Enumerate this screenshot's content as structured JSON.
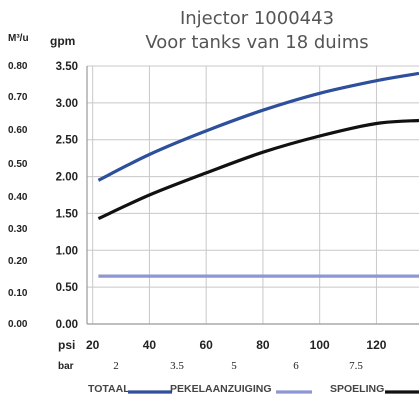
{
  "chart_data": {
    "type": "line",
    "title": "Injector 1000443",
    "subtitle": "Voor tanks van 18 duims",
    "y_unit_left": "M³/u",
    "y_unit": "gpm",
    "x_unit": "psi",
    "x2_unit": "bar",
    "x": [
      20,
      40,
      60,
      80,
      100,
      120,
      135
    ],
    "xlim": [
      18,
      135
    ],
    "ylim": [
      0,
      3.5
    ],
    "xticks": [
      "20",
      "40",
      "60",
      "80",
      "100",
      "120"
    ],
    "x2ticks": [
      "2",
      "3.5",
      "5",
      "6",
      "7.5"
    ],
    "yticks": [
      "0.00",
      "0.50",
      "1.00",
      "1.50",
      "2.00",
      "2.50",
      "3.00",
      "3.50"
    ],
    "y2ticks": [
      "0.00",
      "0.10",
      "0.20",
      "0.30",
      "0.40",
      "0.50",
      "0.60",
      "0.70",
      "0.80"
    ],
    "grid": true,
    "legend_position": "bottom",
    "series": [
      {
        "name": "TOTAAL",
        "color": "#2d4f9c",
        "x": [
          22,
          40,
          60,
          80,
          100,
          120,
          135
        ],
        "values": [
          1.95,
          2.3,
          2.62,
          2.9,
          3.13,
          3.3,
          3.4
        ]
      },
      {
        "name": "PEKELAANZUIGING",
        "color": "#8e97d4",
        "x": [
          22,
          135
        ],
        "values": [
          0.65,
          0.65
        ]
      },
      {
        "name": "SPOELING",
        "color": "#111111",
        "x": [
          22,
          40,
          60,
          80,
          100,
          120,
          135
        ],
        "values": [
          1.43,
          1.75,
          2.05,
          2.33,
          2.55,
          2.72,
          2.76
        ]
      }
    ]
  }
}
